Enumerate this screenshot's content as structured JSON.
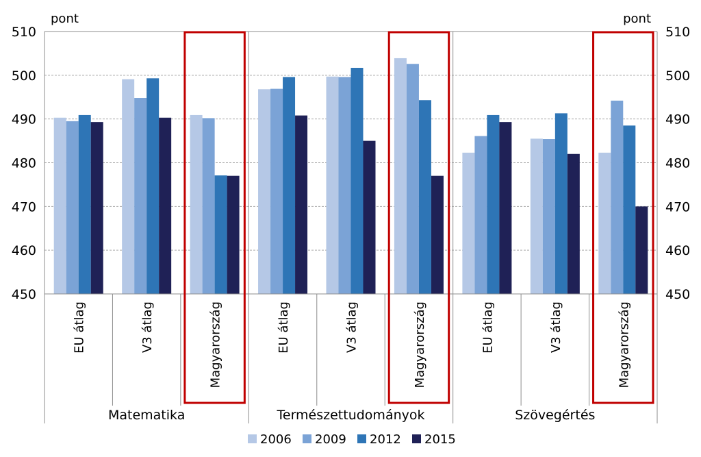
{
  "chart_data": {
    "type": "bar",
    "y_unit_left": "pont",
    "y_unit_right": "pont",
    "ylim": [
      450,
      510
    ],
    "yticks": [
      450,
      460,
      470,
      480,
      490,
      500,
      510
    ],
    "grid": true,
    "legend_position": "bottom",
    "groups": [
      {
        "label": "Matematika",
        "categories": [
          "EU átlag",
          "V3 átlag",
          "Magyarország"
        ],
        "highlight": 2
      },
      {
        "label": "Természettudományok",
        "categories": [
          "EU átlag",
          "V3 átlag",
          "Magyarország"
        ],
        "highlight": 2
      },
      {
        "label": "Szövegértés",
        "categories": [
          "EU átlag",
          "V3 átlag",
          "Magyarország"
        ],
        "highlight": 2
      }
    ],
    "series": [
      {
        "name": "2006",
        "color": "#b5c8e6",
        "values": [
          490.3,
          499.1,
          490.9,
          496.8,
          499.7,
          503.9,
          482.3,
          485.5,
          482.3
        ]
      },
      {
        "name": "2009",
        "color": "#7ba3d6",
        "values": [
          489.5,
          494.8,
          490.2,
          496.9,
          499.6,
          502.6,
          486.1,
          485.4,
          494.2
        ]
      },
      {
        "name": "2012",
        "color": "#2e75b6",
        "values": [
          490.9,
          499.3,
          477.1,
          499.6,
          501.7,
          494.3,
          490.9,
          491.3,
          488.5
        ]
      },
      {
        "name": "2015",
        "color": "#1f2156",
        "values": [
          489.3,
          490.3,
          477.0,
          490.8,
          485.0,
          477.0,
          489.3,
          482.0,
          470.0
        ]
      }
    ],
    "highlight_color": "#c00000"
  }
}
